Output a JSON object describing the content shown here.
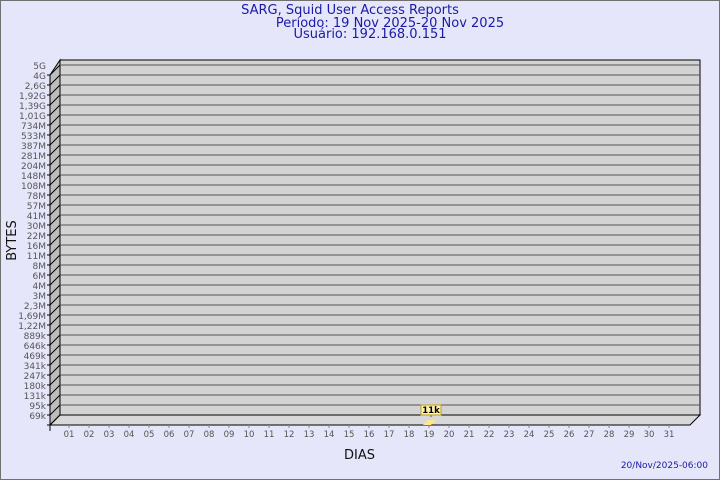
{
  "chart_data": {
    "type": "bar",
    "title": "SARG, Squid User Access Reports",
    "subtitle_period": "Período: 19 Nov 2025-20 Nov 2025",
    "subtitle_user": "Usuário: 192.168.0.151",
    "xlabel": "DIAS",
    "ylabel": "BYTES",
    "footer": "20/Nov/2025-06:00",
    "y_tick_labels": [
      "5G",
      "4G",
      "2,6G",
      "1,92G",
      "1,39G",
      "1,01G",
      "734M",
      "533M",
      "387M",
      "281M",
      "204M",
      "148M",
      "108M",
      "78M",
      "57M",
      "41M",
      "30M",
      "22M",
      "16M",
      "11M",
      "8M",
      "6M",
      "4M",
      "3M",
      "2,3M",
      "1,69M",
      "1,22M",
      "889k",
      "646k",
      "469k",
      "341k",
      "247k",
      "180k",
      "131k",
      "95k",
      "69k"
    ],
    "y_scale": "log",
    "categories": [
      "01",
      "02",
      "03",
      "04",
      "05",
      "06",
      "07",
      "08",
      "09",
      "10",
      "11",
      "12",
      "13",
      "14",
      "15",
      "16",
      "17",
      "18",
      "19",
      "20",
      "21",
      "22",
      "23",
      "24",
      "25",
      "26",
      "27",
      "28",
      "29",
      "30",
      "31"
    ],
    "bars": [
      {
        "day": "19",
        "value_label": "11k"
      }
    ],
    "grid": true,
    "colors": {
      "plot_bg": "#d3d3d3",
      "bar": "#ffe88c",
      "label_bg": "#fff2a8",
      "text": "#1a1aa6",
      "background": "#e6e6fa"
    }
  }
}
